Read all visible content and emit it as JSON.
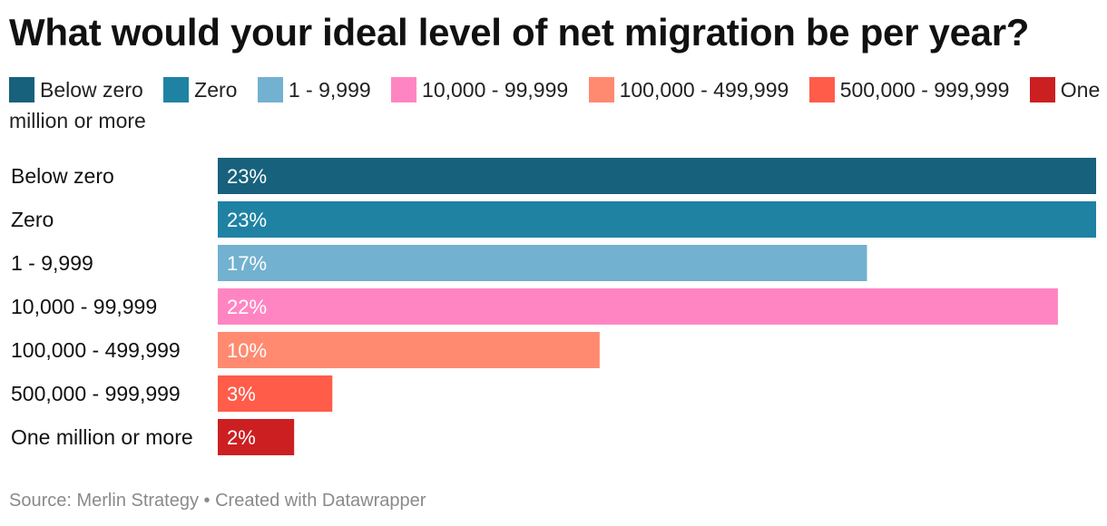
{
  "chart_data": {
    "type": "bar",
    "orientation": "horizontal",
    "title": "What would your ideal level of net migration be per year?",
    "categories": [
      "Below zero",
      "Zero",
      "1 - 9,999",
      "10,000 - 99,999",
      "100,000 - 499,999",
      "500,000 - 999,999",
      "One million or more"
    ],
    "values": [
      23,
      23,
      17,
      22,
      10,
      3,
      2
    ],
    "value_labels": [
      "23%",
      "23%",
      "17%",
      "22%",
      "10%",
      "3%",
      "2%"
    ],
    "colors": [
      "#17617c",
      "#1f82a3",
      "#72b1cf",
      "#ff85c2",
      "#ff8a70",
      "#ff5c4a",
      "#cc1f22"
    ],
    "xlim": [
      0,
      23
    ],
    "xlabel": "",
    "ylabel": "",
    "grid": false,
    "legend": {
      "placement": "top",
      "entries": [
        "Below zero",
        "Zero",
        "1 - 9,999",
        "10,000 - 99,999",
        "100,000 - 499,999",
        "500,000 - 999,999",
        "One million or more"
      ]
    }
  },
  "footer": {
    "source": "Source: Merlin Strategy • Created with Datawrapper"
  }
}
